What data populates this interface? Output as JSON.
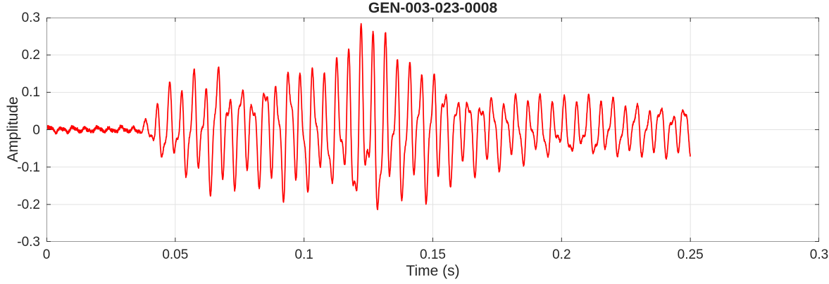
{
  "colors": {
    "background": "#ffffff",
    "text": "#262626",
    "axis_box": "#999999",
    "tick": "#333333",
    "grid": "#e2e2e2",
    "series": "#ff0000"
  },
  "chart_data": {
    "type": "line",
    "title": "GEN-003-023-0008",
    "xlabel": "Time (s)",
    "ylabel": "Amplitude",
    "xlim": [
      0,
      0.3
    ],
    "ylim": [
      -0.3,
      0.3
    ],
    "grid": true,
    "legend": null,
    "xticks": {
      "values": [
        0,
        0.05,
        0.1,
        0.15,
        0.2,
        0.25,
        0.3
      ],
      "labels": [
        "0",
        "0.05",
        "0.1",
        "0.15",
        "0.2",
        "0.25",
        "0.3"
      ]
    },
    "yticks": {
      "values": [
        0.3,
        0.2,
        0.1,
        0,
        -0.1,
        -0.2,
        -0.3
      ],
      "labels": [
        "0.3",
        "0.2",
        "0.1",
        "0",
        "-0.1",
        "-0.2",
        "-0.3"
      ]
    },
    "line_width": 1.7,
    "signal": {
      "description": "Single red waveform trace: low-level noise floor until onset, oscillatory burst peaking near t=0.125-0.135 s at amplitude +0.29/-0.26, decaying to a regular ~215 Hz coda of about +/-0.09 that ends at t=0.25 s.",
      "t_start": 0,
      "t_end": 0.25,
      "sample_step": 6e-05,
      "onset_time": 0.0365,
      "peak_amplitude": 0.29,
      "min_amplitude": -0.26,
      "components": [
        {
          "freq": 215,
          "amp": 1.0,
          "phase": 0.0
        },
        {
          "freq": 418,
          "amp": 0.42,
          "phase": 1.3
        },
        {
          "freq": 106,
          "amp": 0.28,
          "phase": 0.6
        }
      ],
      "carrier_norm": 1.55,
      "beat": [
        {
          "freq": 33,
          "phase": 1.0,
          "ratio": 1.0
        },
        {
          "freq": 12,
          "phase": 2.0,
          "ratio": 0.45
        }
      ],
      "beat_depth": [
        [
          0,
          0.2
        ],
        [
          0.15,
          0.2
        ],
        [
          0.17,
          0.07
        ],
        [
          0.25,
          0.07
        ]
      ],
      "envelope": [
        [
          0.0,
          0.008
        ],
        [
          0.036,
          0.009
        ],
        [
          0.039,
          0.03
        ],
        [
          0.042,
          0.09
        ],
        [
          0.046,
          0.14
        ],
        [
          0.052,
          0.165
        ],
        [
          0.06,
          0.155
        ],
        [
          0.068,
          0.175
        ],
        [
          0.076,
          0.16
        ],
        [
          0.085,
          0.165
        ],
        [
          0.095,
          0.18
        ],
        [
          0.105,
          0.21
        ],
        [
          0.115,
          0.25
        ],
        [
          0.125,
          0.285
        ],
        [
          0.133,
          0.29
        ],
        [
          0.14,
          0.245
        ],
        [
          0.147,
          0.2
        ],
        [
          0.154,
          0.15
        ],
        [
          0.16,
          0.115
        ],
        [
          0.166,
          0.13
        ],
        [
          0.173,
          0.12
        ],
        [
          0.18,
          0.105
        ],
        [
          0.19,
          0.1
        ],
        [
          0.205,
          0.095
        ],
        [
          0.22,
          0.09
        ],
        [
          0.235,
          0.082
        ],
        [
          0.25,
          0.072
        ]
      ],
      "negative_scale": 0.93,
      "noise_amp_pre": 0.0045,
      "noise_amp_post": 0.003,
      "noise_seed": 7,
      "clamp": 0.297
    }
  }
}
